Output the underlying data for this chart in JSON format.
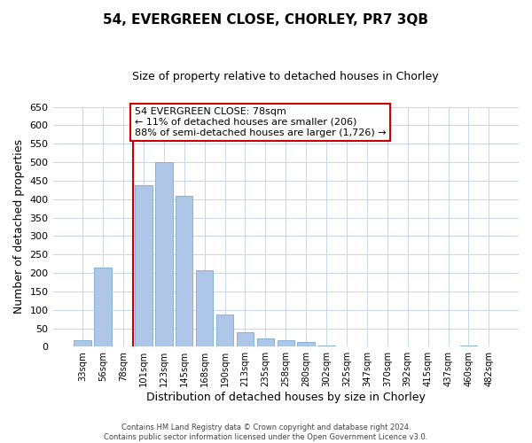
{
  "title": "54, EVERGREEN CLOSE, CHORLEY, PR7 3QB",
  "subtitle": "Size of property relative to detached houses in Chorley",
  "xlabel": "Distribution of detached houses by size in Chorley",
  "ylabel": "Number of detached properties",
  "footer_line1": "Contains HM Land Registry data © Crown copyright and database right 2024.",
  "footer_line2": "Contains public sector information licensed under the Open Government Licence v3.0.",
  "annotation_line1": "54 EVERGREEN CLOSE: 78sqm",
  "annotation_line2": "← 11% of detached houses are smaller (206)",
  "annotation_line3": "88% of semi-detached houses are larger (1,726) →",
  "bar_labels": [
    "33sqm",
    "56sqm",
    "78sqm",
    "101sqm",
    "123sqm",
    "145sqm",
    "168sqm",
    "190sqm",
    "213sqm",
    "235sqm",
    "258sqm",
    "280sqm",
    "302sqm",
    "325sqm",
    "347sqm",
    "370sqm",
    "392sqm",
    "415sqm",
    "437sqm",
    "460sqm",
    "482sqm"
  ],
  "bar_values": [
    18,
    215,
    0,
    438,
    500,
    410,
    207,
    87,
    40,
    22,
    18,
    12,
    3,
    0,
    0,
    0,
    0,
    0,
    0,
    3,
    0
  ],
  "highlight_index": 2,
  "bar_color": "#aec6e8",
  "bar_edge_color": "#7aaacc",
  "highlight_line_color": "#cc0000",
  "annotation_box_edge_color": "#cc0000",
  "annotation_box_face_color": "#ffffff",
  "background_color": "#ffffff",
  "grid_color": "#c8d4e8",
  "ylim": [
    0,
    650
  ],
  "yticks": [
    0,
    50,
    100,
    150,
    200,
    250,
    300,
    350,
    400,
    450,
    500,
    550,
    600,
    650
  ],
  "figsize": [
    6.0,
    5.0
  ],
  "dpi": 100
}
